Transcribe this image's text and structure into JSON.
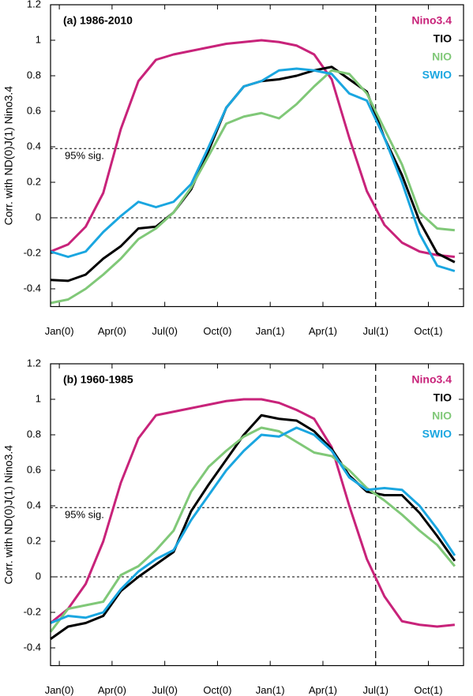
{
  "chart_data": [
    {
      "type": "line",
      "title": "(a) 1986-2010",
      "ylabel": "Corr. with ND(0)J(1) Nino3.4",
      "x": [
        -0.5,
        0.5,
        1.5,
        2.5,
        3.5,
        4.5,
        5.5,
        6.5,
        7.5,
        8.5,
        9.5,
        10.5,
        11.5,
        12.5,
        13.5,
        14.5,
        15.5,
        16.5,
        17.5,
        18.5,
        19.5,
        20.5,
        21.5,
        22.5
      ],
      "xlim": [
        -0.5,
        23
      ],
      "xticks": [
        {
          "value": 0,
          "label": "Jan(0)"
        },
        {
          "value": 3,
          "label": "Apr(0)"
        },
        {
          "value": 6,
          "label": "Jul(0)"
        },
        {
          "value": 9,
          "label": "Oct(0)"
        },
        {
          "value": 12,
          "label": "Jan(1)"
        },
        {
          "value": 15,
          "label": "Apr(1)"
        },
        {
          "value": 18,
          "label": "Jul(1)"
        },
        {
          "value": 21,
          "label": "Oct(1)"
        }
      ],
      "ylim": [
        -0.5,
        1.2
      ],
      "yticks": [
        -0.4,
        -0.2,
        0,
        0.2,
        0.4,
        0.6,
        0.8,
        1,
        1.2
      ],
      "hlines": [
        0,
        0.39
      ],
      "vline": 18,
      "annotation": "95% sig.",
      "legend": "upper right",
      "series": [
        {
          "name": "Nino3.4",
          "color": "#c8237a",
          "values": [
            -0.19,
            -0.15,
            -0.05,
            0.14,
            0.5,
            0.77,
            0.89,
            0.92,
            0.94,
            0.96,
            0.98,
            0.99,
            1.0,
            0.99,
            0.97,
            0.92,
            0.78,
            0.45,
            0.15,
            -0.04,
            -0.14,
            -0.19,
            -0.21,
            -0.22
          ]
        },
        {
          "name": "TIO",
          "color": "#000000",
          "values": [
            -0.35,
            -0.355,
            -0.32,
            -0.23,
            -0.16,
            -0.06,
            -0.05,
            0.03,
            0.16,
            0.38,
            0.62,
            0.74,
            0.77,
            0.78,
            0.8,
            0.83,
            0.85,
            0.78,
            0.71,
            0.45,
            0.24,
            -0.02,
            -0.2,
            -0.25
          ]
        },
        {
          "name": "NIO",
          "color": "#80c878",
          "values": [
            -0.48,
            -0.46,
            -0.4,
            -0.32,
            -0.23,
            -0.12,
            -0.06,
            0.03,
            0.17,
            0.35,
            0.53,
            0.57,
            0.59,
            0.56,
            0.64,
            0.74,
            0.83,
            0.81,
            0.7,
            0.5,
            0.3,
            0.03,
            -0.06,
            -0.07
          ]
        },
        {
          "name": "SWIO",
          "color": "#1aa6e0",
          "values": [
            -0.19,
            -0.22,
            -0.19,
            -0.08,
            0.01,
            0.09,
            0.06,
            0.09,
            0.19,
            0.4,
            0.62,
            0.74,
            0.77,
            0.83,
            0.84,
            0.83,
            0.81,
            0.7,
            0.66,
            0.45,
            0.2,
            -0.09,
            -0.27,
            -0.3
          ]
        }
      ]
    },
    {
      "type": "line",
      "title": "(b) 1960-1985",
      "ylabel": "Corr. with ND(0)J(1) Nino3.4",
      "x": [
        -0.5,
        0.5,
        1.5,
        2.5,
        3.5,
        4.5,
        5.5,
        6.5,
        7.5,
        8.5,
        9.5,
        10.5,
        11.5,
        12.5,
        13.5,
        14.5,
        15.5,
        16.5,
        17.5,
        18.5,
        19.5,
        20.5,
        21.5,
        22.5
      ],
      "xlim": [
        -0.5,
        23
      ],
      "xticks": [
        {
          "value": 0,
          "label": "Jan(0)"
        },
        {
          "value": 3,
          "label": "Apr(0)"
        },
        {
          "value": 6,
          "label": "Jul(0)"
        },
        {
          "value": 9,
          "label": "Oct(0)"
        },
        {
          "value": 12,
          "label": "Jan(1)"
        },
        {
          "value": 15,
          "label": "Apr(1)"
        },
        {
          "value": 18,
          "label": "Jul(1)"
        },
        {
          "value": 21,
          "label": "Oct(1)"
        }
      ],
      "ylim": [
        -0.5,
        1.2
      ],
      "yticks": [
        -0.4,
        -0.2,
        0,
        0.2,
        0.4,
        0.6,
        0.8,
        1,
        1.2
      ],
      "hlines": [
        0,
        0.39
      ],
      "vline": 18,
      "annotation": "95% sig.",
      "legend": "upper right",
      "series": [
        {
          "name": "Nino3.4",
          "color": "#c8237a",
          "values": [
            -0.26,
            -0.18,
            -0.04,
            0.2,
            0.53,
            0.78,
            0.91,
            0.93,
            0.95,
            0.97,
            0.99,
            1.0,
            1.0,
            0.98,
            0.94,
            0.89,
            0.73,
            0.4,
            0.1,
            -0.11,
            -0.25,
            -0.27,
            -0.28,
            -0.27
          ]
        },
        {
          "name": "TIO",
          "color": "#000000",
          "values": [
            -0.35,
            -0.28,
            -0.26,
            -0.22,
            -0.08,
            0.0,
            0.07,
            0.14,
            0.37,
            0.52,
            0.66,
            0.8,
            0.91,
            0.89,
            0.88,
            0.82,
            0.72,
            0.57,
            0.48,
            0.46,
            0.46,
            0.36,
            0.23,
            0.09
          ]
        },
        {
          "name": "NIO",
          "color": "#80c878",
          "values": [
            -0.31,
            -0.18,
            -0.16,
            -0.14,
            0.01,
            0.06,
            0.15,
            0.26,
            0.48,
            0.62,
            0.71,
            0.79,
            0.84,
            0.82,
            0.76,
            0.7,
            0.68,
            0.6,
            0.5,
            0.43,
            0.35,
            0.26,
            0.18,
            0.06
          ]
        },
        {
          "name": "SWIO",
          "color": "#1aa6e0",
          "values": [
            -0.26,
            -0.22,
            -0.23,
            -0.2,
            -0.07,
            0.03,
            0.1,
            0.15,
            0.32,
            0.46,
            0.6,
            0.71,
            0.8,
            0.79,
            0.84,
            0.8,
            0.71,
            0.56,
            0.49,
            0.5,
            0.49,
            0.4,
            0.27,
            0.12
          ]
        }
      ]
    }
  ]
}
